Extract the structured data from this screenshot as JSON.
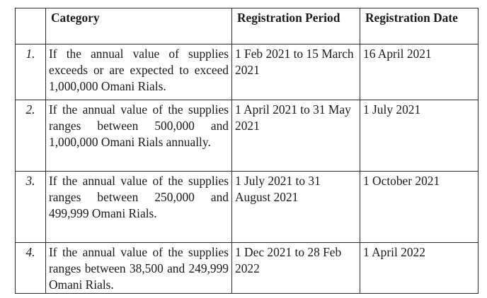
{
  "table": {
    "headers": {
      "number": "",
      "category": "Category",
      "period": "Registration Period",
      "date": "Registration Date"
    },
    "rows": [
      {
        "number": "1.",
        "category": "If the annual value of supplies exceeds or are expected to exceed 1,000,000 Omani Rials.",
        "period": "1 Feb 2021 to 15 March 2021",
        "date": "16 April 2021"
      },
      {
        "number": "2.",
        "category": "If the annual value of the supplies ranges between 500,000 and 1,000,000 Omani Rials annually.",
        "period": "1 April 2021 to 31 May 2021",
        "date": "1 July 2021"
      },
      {
        "number": "3.",
        "category": "If the annual value of the supplies ranges between 250,000 and 499,999 Omani Rials.",
        "period": "1 July 2021 to 31 August 2021",
        "date": "1 October 2021"
      },
      {
        "number": "4.",
        "category": "If the annual value of the supplies ranges between 38,500 and 249,999 Omani Rials.",
        "period": "1 Dec 2021 to 28 Feb 2022",
        "date": "1 April 2022"
      }
    ]
  }
}
